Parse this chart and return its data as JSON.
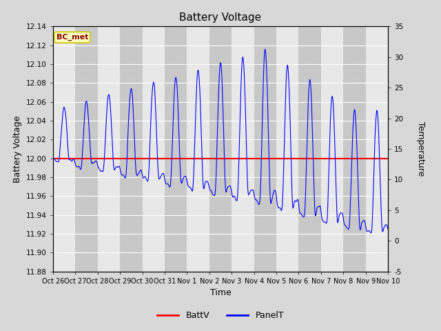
{
  "title": "Battery Voltage",
  "xlabel": "Time",
  "ylabel_left": "Battery Voltage",
  "ylabel_right": "Temperature",
  "ylim_left": [
    11.88,
    12.14
  ],
  "ylim_right": [
    -5,
    35
  ],
  "yticks_left": [
    11.88,
    11.9,
    11.92,
    11.94,
    11.96,
    11.98,
    12.0,
    12.02,
    12.04,
    12.06,
    12.08,
    12.1,
    12.12,
    12.14
  ],
  "yticks_right": [
    -5,
    0,
    5,
    10,
    15,
    20,
    25,
    30,
    35
  ],
  "xtick_labels": [
    "Oct 26",
    "Oct 27",
    "Oct 28",
    "Oct 29",
    "Oct 30",
    "Oct 31",
    "Nov 1",
    "Nov 2",
    "Nov 3",
    "Nov 4",
    "Nov 5",
    "Nov 6",
    "Nov 7",
    "Nov 8",
    "Nov 9",
    "Nov 10"
  ],
  "batt_v": 12.0,
  "annotation_text": "BC_met",
  "annotation_bg": "#ffffc0",
  "annotation_border": "#c8c800",
  "annotation_text_color": "#8b0000",
  "bg_color": "#d8d8d8",
  "plot_bg": "#e8e8e8",
  "line_color_batt": "#ff0000",
  "line_color_panel": "#0000ff",
  "grid_color": "#ffffff",
  "band_color": "#c8c8c8"
}
